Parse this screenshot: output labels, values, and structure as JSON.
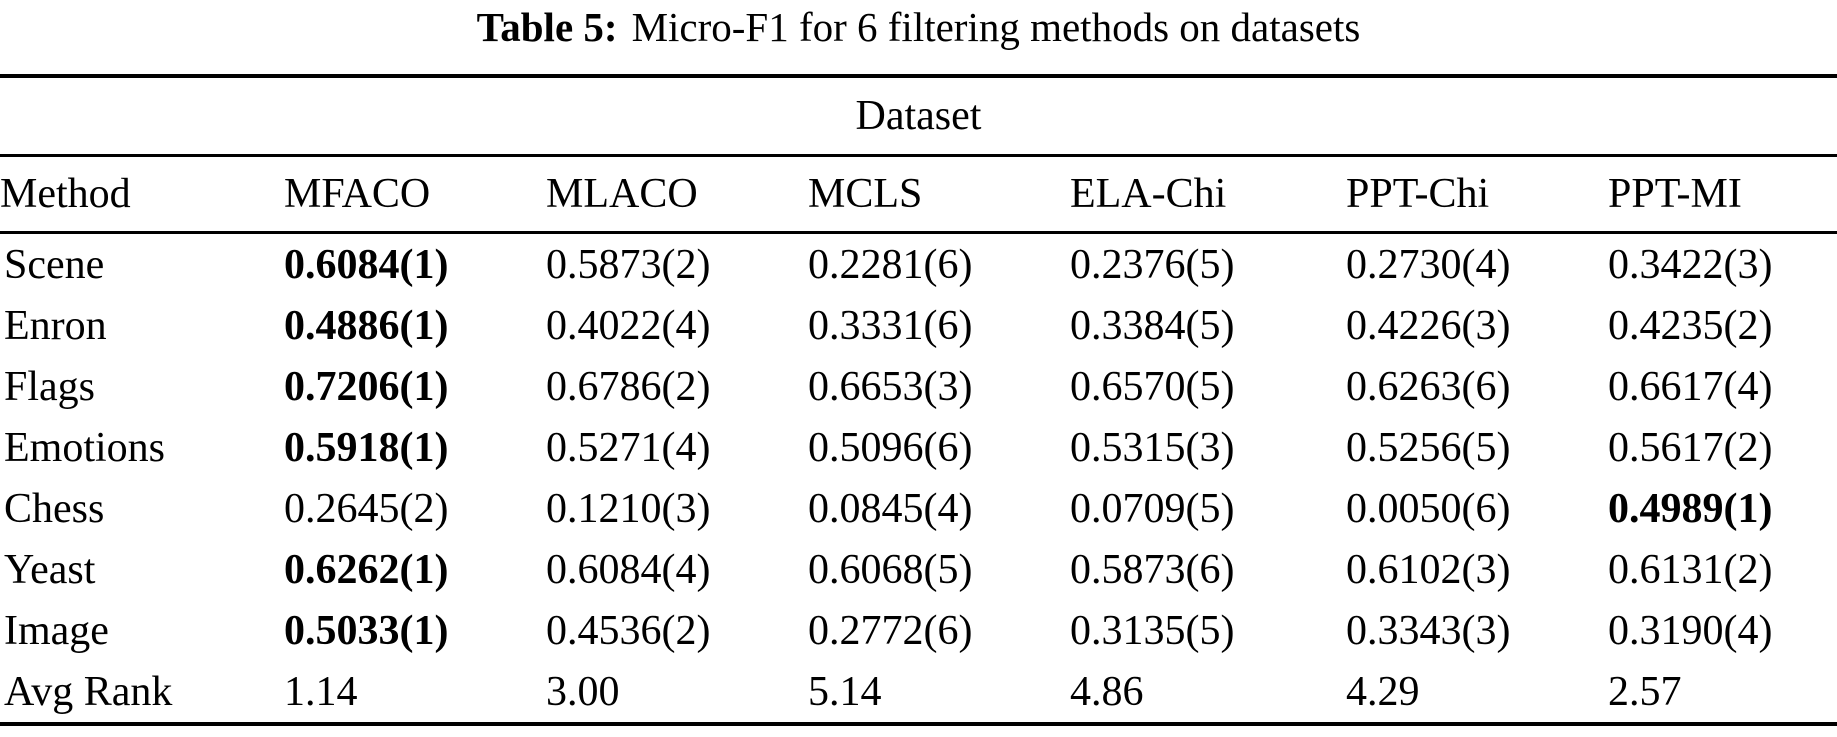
{
  "title": {
    "label": "Table 5:",
    "text": "Micro-F1 for 6 filtering methods on datasets"
  },
  "table": {
    "group_header": "Dataset",
    "columns": [
      "Method",
      "MFACO",
      "MLACO",
      "MCLS",
      "ELA-Chi",
      "PPT-Chi",
      "PPT-MI"
    ],
    "rows": [
      {
        "cells": [
          "Scene",
          "0.6084(1)",
          "0.5873(2)",
          "0.2281(6)",
          "0.2376(5)",
          "0.2730(4)",
          "0.3422(3)"
        ]
      },
      {
        "cells": [
          "Enron",
          "0.4886(1)",
          "0.4022(4)",
          "0.3331(6)",
          "0.3384(5)",
          "0.4226(3)",
          "0.4235(2)"
        ]
      },
      {
        "cells": [
          "Flags",
          "0.7206(1)",
          "0.6786(2)",
          "0.6653(3)",
          "0.6570(5)",
          "0.6263(6)",
          "0.6617(4)"
        ]
      },
      {
        "cells": [
          "Emotions",
          "0.5918(1)",
          "0.5271(4)",
          "0.5096(6)",
          "0.5315(3)",
          "0.5256(5)",
          "0.5617(2)"
        ]
      },
      {
        "cells": [
          "Chess",
          "0.2645(2)",
          "0.1210(3)",
          "0.0845(4)",
          "0.0709(5)",
          "0.0050(6)",
          "0.4989(1)"
        ]
      },
      {
        "cells": [
          "Yeast",
          "0.6262(1)",
          "0.6084(4)",
          "0.6068(5)",
          "0.5873(6)",
          "0.6102(3)",
          "0.6131(2)"
        ]
      },
      {
        "cells": [
          "Image",
          "0.5033(1)",
          "0.4536(2)",
          "0.2772(6)",
          "0.3135(5)",
          "0.3343(3)",
          "0.3190(4)"
        ]
      },
      {
        "cells": [
          "Avg Rank",
          "1.14",
          "3.00",
          "5.14",
          "4.86",
          "4.29",
          "2.57"
        ]
      }
    ],
    "bold_cells": [
      [
        0,
        1
      ],
      [
        1,
        1
      ],
      [
        2,
        1
      ],
      [
        3,
        1
      ],
      [
        4,
        6
      ],
      [
        5,
        1
      ],
      [
        6,
        1
      ]
    ]
  },
  "colors": {
    "text": "#000000",
    "background": "#ffffff",
    "rule": "#000000"
  }
}
